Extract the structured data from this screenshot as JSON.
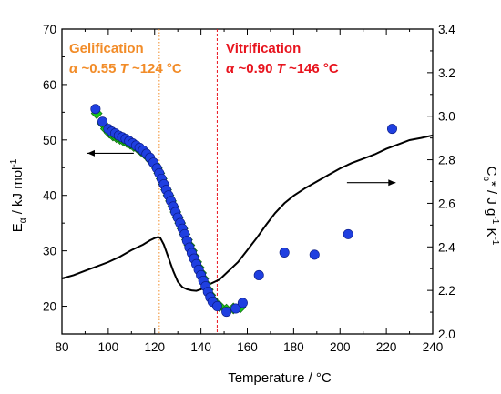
{
  "colors": {
    "gelification": "#f28c28",
    "vitrification": "#e8141e",
    "diamond_fill": "#19c419",
    "circle_fill": "#1f3fe0",
    "line": "#000000"
  },
  "chart_data": {
    "type": "scatter",
    "xlabel": "Temperature / °C",
    "ylabel_left": {
      "main": "E",
      "sub": "α",
      "rest": " / kJ mol",
      "sup": "-1"
    },
    "ylabel_right": {
      "main": "C",
      "sub": "p",
      "rest": "* / J g",
      "sup1": "-1",
      "rest2": " K",
      "sup2": "-1"
    },
    "xlim": [
      80,
      240
    ],
    "ylim_left": [
      15,
      70
    ],
    "ylim_right": [
      2.0,
      3.4
    ],
    "x_ticks": [
      "80",
      "100",
      "120",
      "140",
      "160",
      "180",
      "200",
      "220",
      "240"
    ],
    "y_ticks_left": [
      "20",
      "30",
      "40",
      "50",
      "60",
      "70"
    ],
    "y_ticks_right": [
      "2.0",
      "2.2",
      "2.4",
      "2.6",
      "2.8",
      "3.0",
      "3.2",
      "3.4"
    ],
    "grid": false,
    "annotations": {
      "gelification": {
        "title": "Gelification",
        "alpha_sym": "α",
        "alpha_val": " ~0.55 ",
        "t_sym": "T",
        "t_val": " ~124 °C",
        "x": 122
      },
      "vitrification": {
        "title": "Vitrification",
        "alpha_sym": "α",
        "alpha_val": " ~0.90 ",
        "t_sym": "T",
        "t_val": " ~146 °C",
        "x": 147
      }
    },
    "arrows": [
      {
        "direction": "left",
        "axis": "left",
        "from_x": 111,
        "to_x": 91,
        "y": 47.6
      },
      {
        "direction": "right",
        "axis": "right",
        "from_x": 203,
        "to_x": 224,
        "y": 2.695
      }
    ],
    "series": [
      {
        "marker": "diamond",
        "axis": "left",
        "points": [
          [
            95,
            54.8
          ],
          [
            97.5,
            53.0
          ],
          [
            99,
            52.0
          ],
          [
            100.5,
            51.3
          ],
          [
            102,
            50.8
          ],
          [
            103.5,
            50.5
          ],
          [
            105,
            50.2
          ],
          [
            106.5,
            49.9
          ],
          [
            108,
            49.6
          ],
          [
            109.5,
            49.3
          ],
          [
            111,
            48.9
          ],
          [
            112.5,
            48.6
          ],
          [
            114,
            48.1
          ],
          [
            115.5,
            47.6
          ],
          [
            117,
            47.0
          ],
          [
            118.5,
            46.3
          ],
          [
            120,
            45.6
          ],
          [
            121,
            44.9
          ],
          [
            122,
            44.0
          ],
          [
            123,
            43.0
          ],
          [
            124,
            42.0
          ],
          [
            125,
            41.0
          ],
          [
            126,
            40.0
          ],
          [
            127,
            39.0
          ],
          [
            128,
            38.0
          ],
          [
            129,
            37.0
          ],
          [
            130,
            36.0
          ],
          [
            131,
            35.0
          ],
          [
            132,
            34.0
          ],
          [
            133,
            33.0
          ],
          [
            134,
            32.0
          ],
          [
            135,
            31.0
          ],
          [
            136,
            30.0
          ],
          [
            137,
            29.0
          ],
          [
            138,
            28.0
          ],
          [
            139,
            27.0
          ],
          [
            140,
            26.0
          ],
          [
            141,
            25.0
          ],
          [
            142,
            24.0
          ],
          [
            143,
            23.0
          ],
          [
            144,
            22.0
          ],
          [
            145,
            21.2
          ],
          [
            146,
            20.6
          ],
          [
            148,
            20.0
          ],
          [
            151,
            19.4
          ],
          [
            154,
            19.6
          ],
          [
            157,
            19.8
          ]
        ]
      },
      {
        "marker": "circle",
        "axis": "left",
        "points": [
          [
            94.5,
            55.6
          ],
          [
            97.5,
            53.3
          ],
          [
            100,
            52.0
          ],
          [
            101.5,
            51.5
          ],
          [
            103,
            51.2
          ],
          [
            104.5,
            50.8
          ],
          [
            106,
            50.5
          ],
          [
            107.5,
            50.2
          ],
          [
            109,
            49.8
          ],
          [
            110.5,
            49.4
          ],
          [
            112,
            49.0
          ],
          [
            113.5,
            48.6
          ],
          [
            115,
            48.1
          ],
          [
            116.5,
            47.5
          ],
          [
            118,
            46.8
          ],
          [
            119.5,
            45.9
          ],
          [
            121,
            44.9
          ],
          [
            122,
            44.0
          ],
          [
            123,
            43.0
          ],
          [
            124,
            42.0
          ],
          [
            125,
            41.0
          ],
          [
            126,
            40.0
          ],
          [
            127,
            39.0
          ],
          [
            128,
            38.0
          ],
          [
            129,
            37.0
          ],
          [
            130,
            36.0
          ],
          [
            131,
            35.0
          ],
          [
            132,
            34.0
          ],
          [
            133,
            33.0
          ],
          [
            134,
            31.8
          ],
          [
            135,
            30.6
          ],
          [
            136,
            29.6
          ],
          [
            137,
            28.6
          ],
          [
            138,
            27.6
          ],
          [
            139,
            26.6
          ],
          [
            140,
            25.6
          ],
          [
            141,
            24.6
          ],
          [
            142,
            23.6
          ],
          [
            143,
            22.6
          ],
          [
            144,
            21.6
          ],
          [
            145,
            20.8
          ],
          [
            147,
            20.0
          ],
          [
            151,
            19.0
          ],
          [
            155,
            19.6
          ],
          [
            158,
            20.6
          ],
          [
            165,
            25.6
          ],
          [
            176,
            29.7
          ],
          [
            189,
            29.3
          ],
          [
            203.5,
            33.0
          ],
          [
            222.5,
            52.0
          ]
        ]
      },
      {
        "marker": "line",
        "axis": "right",
        "points": [
          [
            80,
            2.255
          ],
          [
            85,
            2.27
          ],
          [
            90,
            2.29
          ],
          [
            95,
            2.31
          ],
          [
            100,
            2.33
          ],
          [
            105,
            2.355
          ],
          [
            110,
            2.385
          ],
          [
            115,
            2.41
          ],
          [
            118,
            2.43
          ],
          [
            120,
            2.44
          ],
          [
            121.5,
            2.445
          ],
          [
            122.5,
            2.44
          ],
          [
            124,
            2.41
          ],
          [
            126,
            2.35
          ],
          [
            128,
            2.29
          ],
          [
            130,
            2.24
          ],
          [
            132,
            2.215
          ],
          [
            134,
            2.205
          ],
          [
            136,
            2.2
          ],
          [
            138,
            2.198
          ],
          [
            140,
            2.205
          ],
          [
            142,
            2.215
          ],
          [
            144,
            2.23
          ],
          [
            146,
            2.24
          ],
          [
            148,
            2.25
          ],
          [
            150,
            2.27
          ],
          [
            153,
            2.3
          ],
          [
            156,
            2.33
          ],
          [
            160,
            2.385
          ],
          [
            164,
            2.44
          ],
          [
            168,
            2.5
          ],
          [
            172,
            2.555
          ],
          [
            176,
            2.6
          ],
          [
            180,
            2.635
          ],
          [
            185,
            2.67
          ],
          [
            190,
            2.7
          ],
          [
            195,
            2.73
          ],
          [
            200,
            2.76
          ],
          [
            205,
            2.785
          ],
          [
            210,
            2.805
          ],
          [
            215,
            2.825
          ],
          [
            220,
            2.85
          ],
          [
            225,
            2.87
          ],
          [
            230,
            2.89
          ],
          [
            235,
            2.9
          ],
          [
            240,
            2.912
          ]
        ]
      }
    ]
  }
}
